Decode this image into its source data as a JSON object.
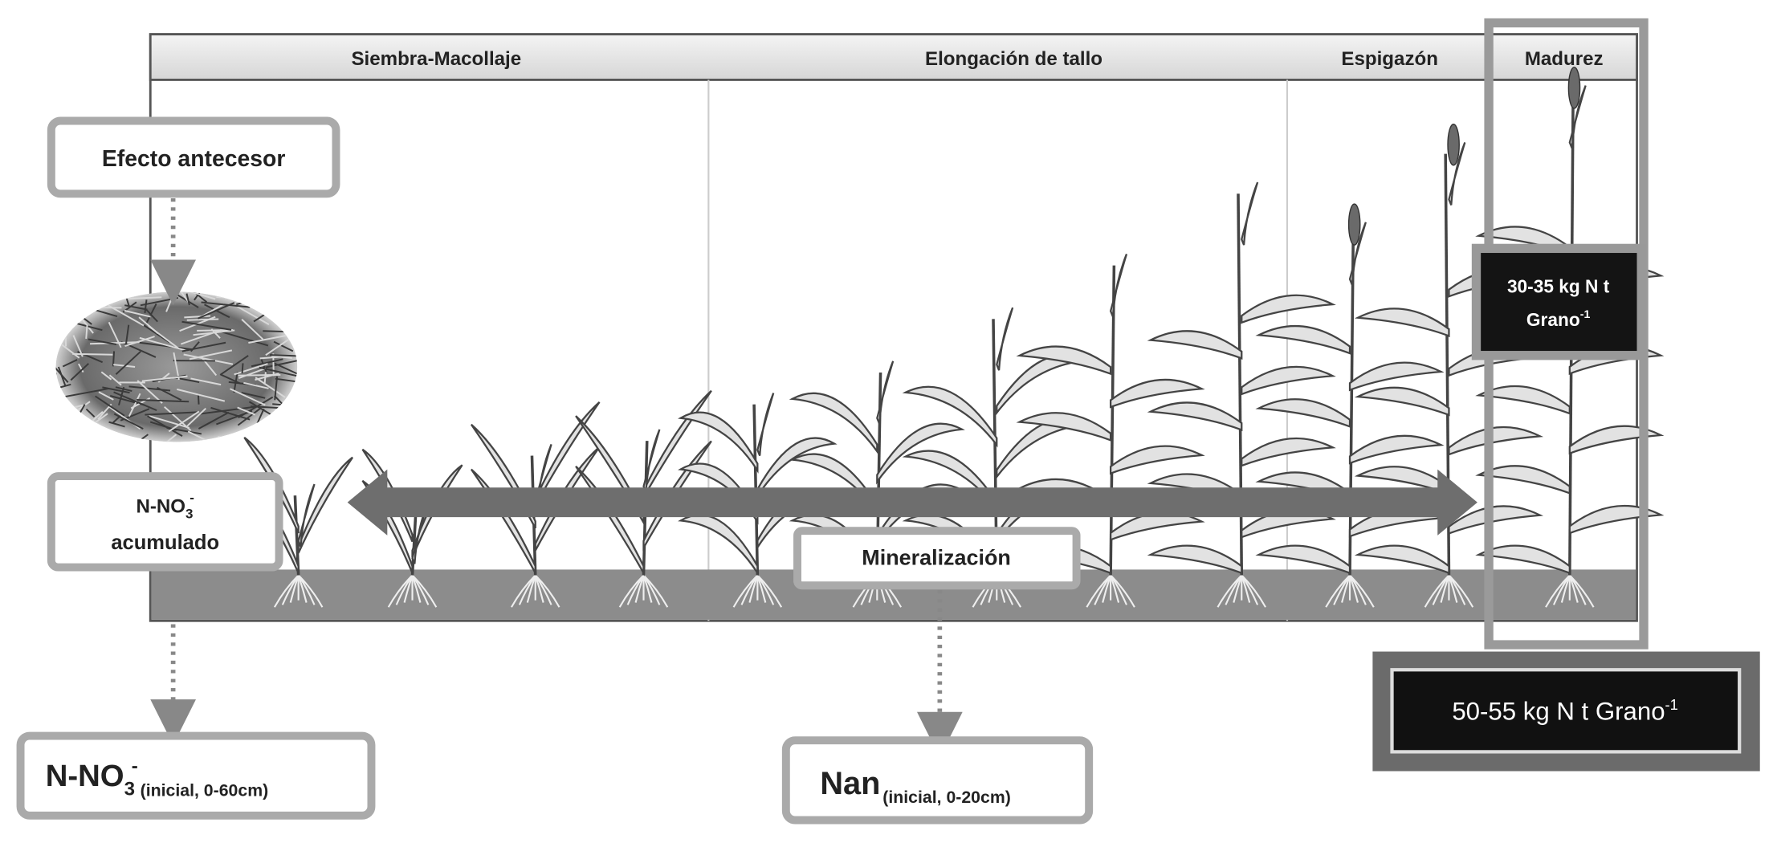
{
  "header": {
    "stages": [
      "Siembra-Macollaje",
      "Elongación de tallo",
      "Espigazón",
      "Madurez"
    ]
  },
  "boxes": {
    "efecto_antecesor": "Efecto antecesor",
    "nitrate_accumulated": {
      "formula": "N-NO",
      "sub": "3",
      "sup": "-",
      "text": "acumulado"
    },
    "mineralizacion": "Mineralización",
    "nitrate_initial": {
      "formula": "N-NO",
      "sub": "3",
      "sup": "-",
      "range": "(inicial, 0-60cm)"
    },
    "nan_initial": {
      "formula": "Nan",
      "range": "(inicial, 0-20cm)"
    },
    "maturity_requirement": {
      "text": "30-35 kg N t",
      "line2": "Grano",
      "sup": "-1"
    },
    "total_requirement": {
      "text": "50-55 kg N t Grano",
      "sup": "-1"
    }
  }
}
